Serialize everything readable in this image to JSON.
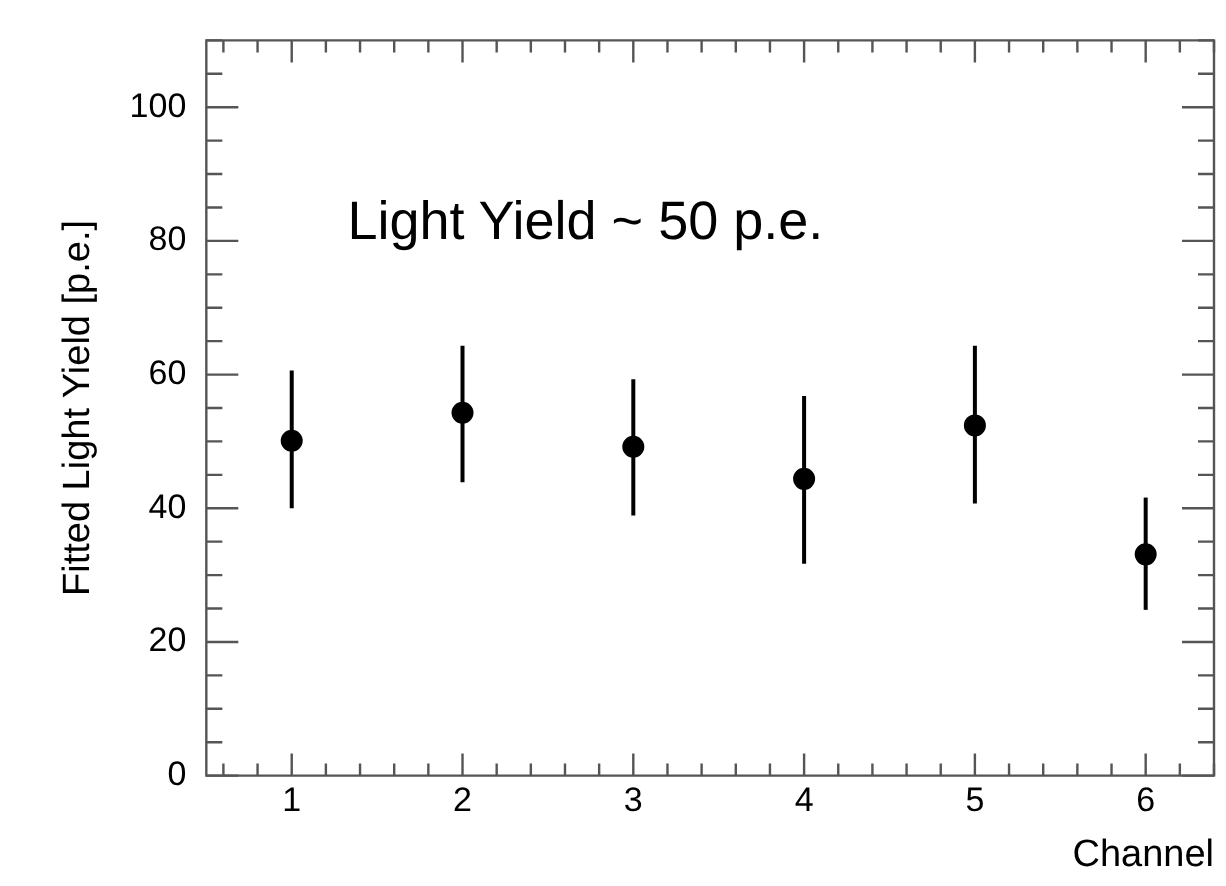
{
  "chart_data": {
    "type": "scatter",
    "xlabel": "Channel",
    "ylabel": "Fitted Light Yield [p.e.]",
    "annotations": [
      "Light Yield ~ 50 p.e."
    ],
    "x": [
      1,
      2,
      3,
      4,
      5,
      6
    ],
    "series": [
      {
        "color": "#000000",
        "values": [
          50.1,
          54.3,
          49.2,
          44.4,
          52.4,
          33.1
        ],
        "errors": [
          [
            40,
            60.6
          ],
          [
            43.9,
            64.3
          ],
          [
            38.9,
            59.3
          ],
          [
            31.7,
            56.8
          ],
          [
            40.7,
            64.3
          ],
          [
            24.8,
            41.6
          ]
        ]
      }
    ],
    "xlim": [
      0.5,
      6.4
    ],
    "ylim": [
      0,
      110
    ],
    "xticks": [
      1,
      2,
      3,
      4,
      5,
      6
    ],
    "yticks": [
      0,
      20,
      40,
      60,
      80,
      100
    ],
    "grid": false,
    "legend": false,
    "marker": "circle"
  }
}
